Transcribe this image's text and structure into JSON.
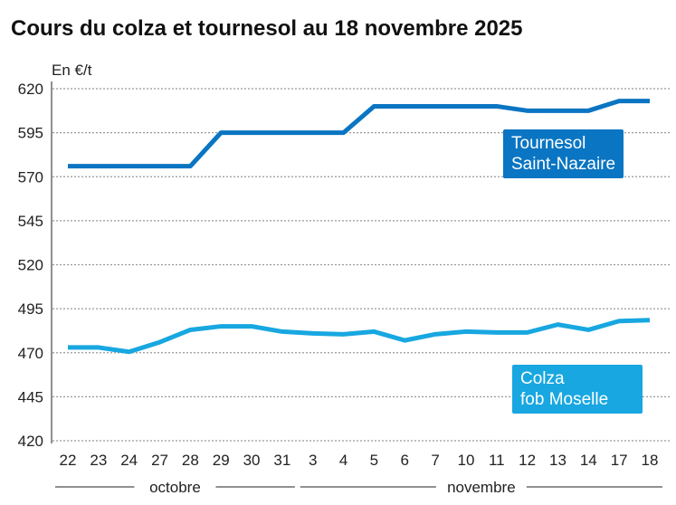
{
  "chart_data": {
    "type": "line",
    "title": "Cours du colza et tournesol au 18 novembre 2025",
    "ylabel": "En €/t",
    "ylim": [
      420,
      620
    ],
    "yticks": [
      620,
      595,
      570,
      545,
      520,
      495,
      470,
      445,
      420
    ],
    "grid": true,
    "categories": [
      "22",
      "23",
      "24",
      "27",
      "28",
      "29",
      "30",
      "31",
      "3",
      "4",
      "5",
      "6",
      "7",
      "10",
      "11",
      "12",
      "13",
      "14",
      "17",
      "18"
    ],
    "month_groups": [
      {
        "label": "octobre",
        "from": 0,
        "to": 7
      },
      {
        "label": "novembre",
        "from": 8,
        "to": 19
      }
    ],
    "series": [
      {
        "name": "Tournesol Saint-Nazaire",
        "color": "#0a75c2",
        "values": [
          576,
          576,
          576,
          576,
          576,
          595,
          595,
          595,
          595,
          595,
          610,
          610,
          610,
          610,
          610,
          607.5,
          607.5,
          607.5,
          613,
          613
        ]
      },
      {
        "name": "Colza fob Moselle",
        "color": "#18a7e0",
        "values": [
          473,
          473,
          470.5,
          476,
          483,
          485,
          485,
          482,
          481,
          480.5,
          482,
          477,
          480.5,
          482,
          481.5,
          481.5,
          486,
          483,
          488,
          488.5
        ]
      }
    ]
  }
}
